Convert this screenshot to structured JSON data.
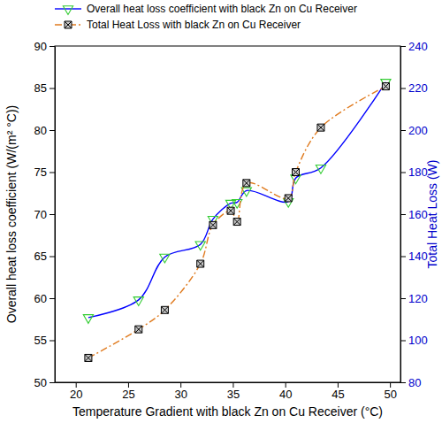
{
  "chart_data": {
    "type": "line",
    "xlabel": "Temperature Gradient with black Zn on Cu Receiver (°C)",
    "ylabel": "Overall heat loss coefficient (W/(m² °C))",
    "y2label": "Total Heat Loss (W)",
    "x": [
      21.2,
      26.0,
      28.5,
      31.9,
      33.1,
      34.8,
      35.4,
      36.3,
      40.3,
      41.0,
      43.4,
      49.6
    ],
    "series": [
      {
        "name": "Overall heat loss coefficient with black Zn on Cu Receiver",
        "color": "#0000ff",
        "marker": "triangle-down",
        "line_style": "solid",
        "values": [
          57.7,
          59.8,
          64.9,
          66.4,
          69.4,
          71.3,
          71.4,
          72.8,
          71.5,
          74.3,
          75.5,
          85.7
        ]
      },
      {
        "name": "Total Heat Loss with black Zn on Cu Receiver",
        "color": "#e07b1f",
        "marker": "square-x",
        "line_style": "dashdot",
        "axis": "y2",
        "values": [
          91.6,
          105.2,
          114.4,
          136.4,
          154.8,
          161.6,
          156.4,
          174.8,
          167.6,
          180.0,
          201.2,
          220.8
        ]
      }
    ],
    "xlim": [
      18,
      51
    ],
    "xticks": [
      20,
      25,
      30,
      35,
      40,
      45,
      50
    ],
    "ylim": [
      50,
      90
    ],
    "yticks": [
      50,
      55,
      60,
      65,
      70,
      75,
      80,
      85,
      90
    ],
    "y2lim": [
      80,
      240
    ],
    "y2ticks": [
      80,
      100,
      120,
      140,
      160,
      180,
      200,
      220,
      240
    ],
    "legend": "top",
    "grid": false
  }
}
